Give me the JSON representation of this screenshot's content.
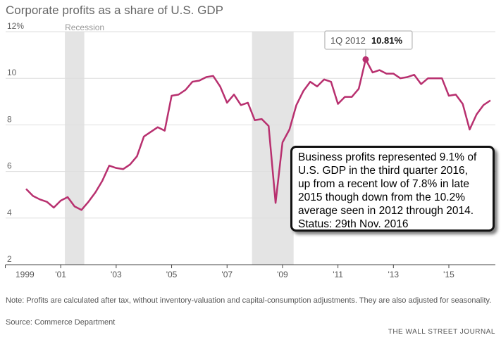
{
  "chart_data": {
    "type": "line",
    "title": "Corporate profits as a share of U.S. GDP",
    "x": [
      1999.75,
      2000,
      2000.25,
      2000.5,
      2000.75,
      2001,
      2001.25,
      2001.5,
      2001.75,
      2002,
      2002.25,
      2002.5,
      2002.75,
      2003,
      2003.25,
      2003.5,
      2003.75,
      2004,
      2004.25,
      2004.5,
      2004.75,
      2005,
      2005.25,
      2005.5,
      2005.75,
      2006,
      2006.25,
      2006.5,
      2006.75,
      2007,
      2007.25,
      2007.5,
      2007.75,
      2008,
      2008.25,
      2008.5,
      2008.75,
      2009,
      2009.25,
      2009.5,
      2009.75,
      2010,
      2010.25,
      2010.5,
      2010.75,
      2011,
      2011.25,
      2011.5,
      2011.75,
      2012,
      2012.25,
      2012.5,
      2012.75,
      2013,
      2013.25,
      2013.5,
      2013.75,
      2014,
      2014.25,
      2014.5,
      2014.75,
      2015,
      2015.25,
      2015.5,
      2015.75,
      2016,
      2016.25,
      2016.5
    ],
    "series": [
      {
        "name": "Corporate profits",
        "color": "#b8306f",
        "values": [
          5.25,
          4.95,
          4.8,
          4.7,
          4.45,
          4.75,
          4.9,
          4.5,
          4.35,
          4.7,
          5.1,
          5.6,
          6.25,
          6.15,
          6.1,
          6.3,
          6.65,
          7.5,
          7.7,
          7.9,
          7.75,
          9.25,
          9.3,
          9.5,
          9.85,
          9.9,
          10.05,
          10.1,
          9.65,
          8.95,
          9.3,
          8.85,
          8.95,
          8.2,
          8.25,
          7.95,
          4.65,
          7.25,
          7.8,
          8.85,
          9.45,
          9.85,
          9.65,
          9.95,
          9.85,
          8.9,
          9.2,
          9.2,
          9.55,
          10.81,
          10.25,
          10.35,
          10.2,
          10.2,
          10.0,
          10.05,
          10.15,
          9.75,
          10.0,
          10.0,
          10.0,
          9.25,
          9.3,
          8.9,
          7.8,
          8.45,
          8.85,
          9.05
        ]
      }
    ],
    "xlim": [
      1999.75,
      2016.5
    ],
    "xticks": [
      {
        "value": 1999,
        "label": "1999"
      },
      {
        "value": 2001,
        "label": "'01"
      },
      {
        "value": 2003,
        "label": "'03"
      },
      {
        "value": 2005,
        "label": "'05"
      },
      {
        "value": 2007,
        "label": "'07"
      },
      {
        "value": 2009,
        "label": "'09"
      },
      {
        "value": 2011,
        "label": "'11"
      },
      {
        "value": 2013,
        "label": "'13"
      },
      {
        "value": 2015,
        "label": "'15"
      }
    ],
    "ylim": [
      2,
      12
    ],
    "yticks": [
      2,
      4,
      6,
      8,
      10,
      {
        "value": 12,
        "label": "12%"
      }
    ],
    "grid": true,
    "recession_label": "Recession",
    "recessions": [
      [
        2001.15,
        2001.85
      ],
      [
        2007.9,
        2009.4
      ]
    ],
    "highlight": {
      "x": 2012,
      "label": "1Q 2012",
      "value_label": "10.81%"
    },
    "annotation": [
      "Business profits represented 9.1% of",
      "U.S. GDP in the third quarter 2016,",
      "up from a recent low of 7.8% in late",
      "2015 though down from the 10.2%",
      "average seen in 2012 through 2014.",
      "Status: 29th Nov. 2016"
    ],
    "note": "Note: Profits are calculated after tax, without inventory-valuation and capital-consumption adjustments. They are also adjusted for seasonality.",
    "source": "Source: Commerce Department",
    "credit": "THE WALL STREET JOURNAL"
  }
}
